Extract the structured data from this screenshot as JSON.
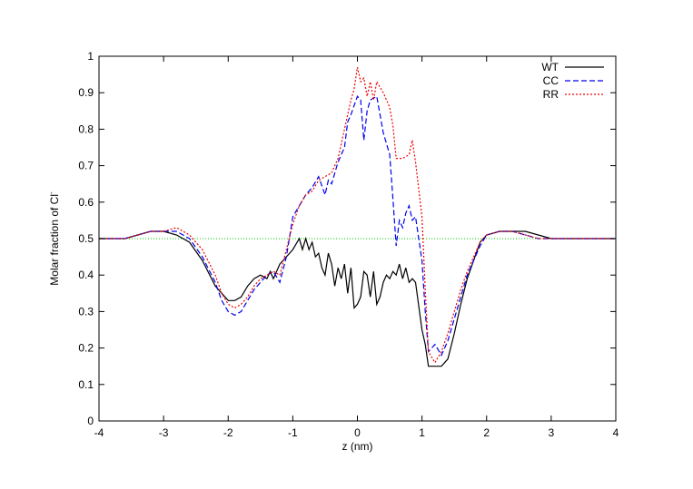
{
  "chart_data": {
    "type": "line",
    "title": "",
    "xlabel": "z (nm)",
    "ylabel": "Molar fraction of Cl",
    "ylabel_sup": "-",
    "xlim": [
      -4,
      4
    ],
    "ylim": [
      0,
      1
    ],
    "xticks": [
      "-4",
      "-3",
      "-2",
      "-1",
      "0",
      "1",
      "2",
      "3",
      "4"
    ],
    "yticks": [
      "0",
      "0.1",
      "0.2",
      "0.3",
      "0.4",
      "0.5",
      "0.6",
      "0.7",
      "0.8",
      "0.9",
      "1"
    ],
    "grid": false,
    "legend_position": "top-right",
    "reference_line": {
      "y": 0.5,
      "color": "#00cc00"
    },
    "series": [
      {
        "name": "WT",
        "color": "#000000",
        "dash": "",
        "x": [
          -4.0,
          -3.8,
          -3.6,
          -3.4,
          -3.2,
          -3.0,
          -2.8,
          -2.6,
          -2.4,
          -2.2,
          -2.1,
          -2.0,
          -1.9,
          -1.8,
          -1.7,
          -1.6,
          -1.5,
          -1.4,
          -1.35,
          -1.3,
          -1.2,
          -1.1,
          -1.0,
          -0.9,
          -0.85,
          -0.8,
          -0.75,
          -0.7,
          -0.65,
          -0.6,
          -0.55,
          -0.5,
          -0.45,
          -0.4,
          -0.35,
          -0.3,
          -0.25,
          -0.2,
          -0.15,
          -0.1,
          -0.05,
          0.0,
          0.05,
          0.1,
          0.15,
          0.2,
          0.25,
          0.3,
          0.35,
          0.4,
          0.45,
          0.5,
          0.55,
          0.6,
          0.65,
          0.7,
          0.75,
          0.8,
          0.85,
          0.9,
          1.0,
          1.05,
          1.1,
          1.2,
          1.3,
          1.4,
          1.5,
          1.6,
          1.7,
          1.8,
          1.9,
          2.0,
          2.2,
          2.4,
          2.6,
          2.8,
          3.0,
          3.2,
          3.4,
          3.6,
          3.8,
          4.0
        ],
        "values": [
          0.5,
          0.5,
          0.5,
          0.51,
          0.52,
          0.52,
          0.51,
          0.49,
          0.44,
          0.37,
          0.35,
          0.33,
          0.33,
          0.34,
          0.37,
          0.39,
          0.4,
          0.39,
          0.41,
          0.39,
          0.43,
          0.45,
          0.47,
          0.5,
          0.47,
          0.5,
          0.47,
          0.49,
          0.45,
          0.46,
          0.42,
          0.4,
          0.46,
          0.43,
          0.37,
          0.42,
          0.39,
          0.43,
          0.35,
          0.42,
          0.31,
          0.32,
          0.34,
          0.41,
          0.4,
          0.34,
          0.41,
          0.32,
          0.34,
          0.38,
          0.4,
          0.39,
          0.41,
          0.4,
          0.43,
          0.39,
          0.42,
          0.38,
          0.39,
          0.38,
          0.25,
          0.21,
          0.15,
          0.15,
          0.15,
          0.17,
          0.24,
          0.32,
          0.39,
          0.44,
          0.49,
          0.51,
          0.52,
          0.52,
          0.52,
          0.51,
          0.5,
          0.5,
          0.5,
          0.5,
          0.5,
          0.5
        ]
      },
      {
        "name": "CC",
        "color": "#0000ee",
        "dash": "6,3",
        "x": [
          -4.0,
          -3.8,
          -3.6,
          -3.4,
          -3.2,
          -3.0,
          -2.8,
          -2.6,
          -2.4,
          -2.2,
          -2.1,
          -2.0,
          -1.9,
          -1.8,
          -1.7,
          -1.6,
          -1.5,
          -1.4,
          -1.3,
          -1.2,
          -1.1,
          -1.0,
          -0.9,
          -0.8,
          -0.7,
          -0.6,
          -0.5,
          -0.45,
          -0.4,
          -0.3,
          -0.2,
          -0.15,
          -0.1,
          0.0,
          0.05,
          0.1,
          0.15,
          0.2,
          0.3,
          0.4,
          0.5,
          0.55,
          0.6,
          0.65,
          0.7,
          0.75,
          0.8,
          0.85,
          0.9,
          1.0,
          1.05,
          1.1,
          1.2,
          1.3,
          1.4,
          1.5,
          1.6,
          1.7,
          1.8,
          1.9,
          2.0,
          2.2,
          2.4,
          2.6,
          2.8,
          3.0,
          3.2,
          3.4,
          3.6,
          3.8,
          4.0
        ],
        "values": [
          0.5,
          0.5,
          0.5,
          0.51,
          0.52,
          0.52,
          0.52,
          0.5,
          0.45,
          0.38,
          0.33,
          0.3,
          0.29,
          0.3,
          0.33,
          0.36,
          0.38,
          0.4,
          0.41,
          0.38,
          0.45,
          0.56,
          0.59,
          0.62,
          0.64,
          0.67,
          0.62,
          0.66,
          0.65,
          0.71,
          0.75,
          0.82,
          0.84,
          0.89,
          0.88,
          0.77,
          0.85,
          0.88,
          0.89,
          0.79,
          0.73,
          0.61,
          0.48,
          0.55,
          0.53,
          0.57,
          0.59,
          0.55,
          0.56,
          0.44,
          0.3,
          0.19,
          0.21,
          0.18,
          0.22,
          0.28,
          0.34,
          0.4,
          0.44,
          0.48,
          0.51,
          0.52,
          0.52,
          0.51,
          0.5,
          0.5,
          0.5,
          0.5,
          0.5,
          0.5,
          0.5
        ]
      },
      {
        "name": "RR",
        "color": "#ee0000",
        "dash": "2,2",
        "x": [
          -4.0,
          -3.8,
          -3.6,
          -3.4,
          -3.2,
          -3.0,
          -2.8,
          -2.6,
          -2.4,
          -2.2,
          -2.1,
          -2.0,
          -1.9,
          -1.8,
          -1.7,
          -1.6,
          -1.5,
          -1.4,
          -1.3,
          -1.2,
          -1.1,
          -1.0,
          -0.9,
          -0.8,
          -0.7,
          -0.6,
          -0.5,
          -0.4,
          -0.3,
          -0.2,
          -0.1,
          -0.05,
          0.0,
          0.05,
          0.1,
          0.15,
          0.2,
          0.25,
          0.3,
          0.4,
          0.5,
          0.55,
          0.6,
          0.7,
          0.8,
          0.85,
          0.9,
          1.0,
          1.05,
          1.1,
          1.2,
          1.3,
          1.4,
          1.5,
          1.6,
          1.7,
          1.8,
          1.9,
          2.0,
          2.2,
          2.4,
          2.6,
          2.8,
          3.0,
          3.2,
          3.4,
          3.6,
          3.8,
          4.0
        ],
        "values": [
          0.5,
          0.5,
          0.5,
          0.51,
          0.52,
          0.52,
          0.53,
          0.51,
          0.47,
          0.4,
          0.35,
          0.32,
          0.31,
          0.32,
          0.34,
          0.37,
          0.39,
          0.4,
          0.41,
          0.4,
          0.47,
          0.54,
          0.59,
          0.62,
          0.63,
          0.66,
          0.67,
          0.68,
          0.72,
          0.8,
          0.88,
          0.91,
          0.97,
          0.93,
          0.94,
          0.89,
          0.93,
          0.88,
          0.93,
          0.9,
          0.86,
          0.81,
          0.72,
          0.72,
          0.73,
          0.77,
          0.71,
          0.56,
          0.36,
          0.19,
          0.16,
          0.19,
          0.24,
          0.3,
          0.36,
          0.41,
          0.45,
          0.49,
          0.51,
          0.52,
          0.52,
          0.51,
          0.5,
          0.5,
          0.5,
          0.5,
          0.5,
          0.5,
          0.5
        ]
      }
    ]
  }
}
